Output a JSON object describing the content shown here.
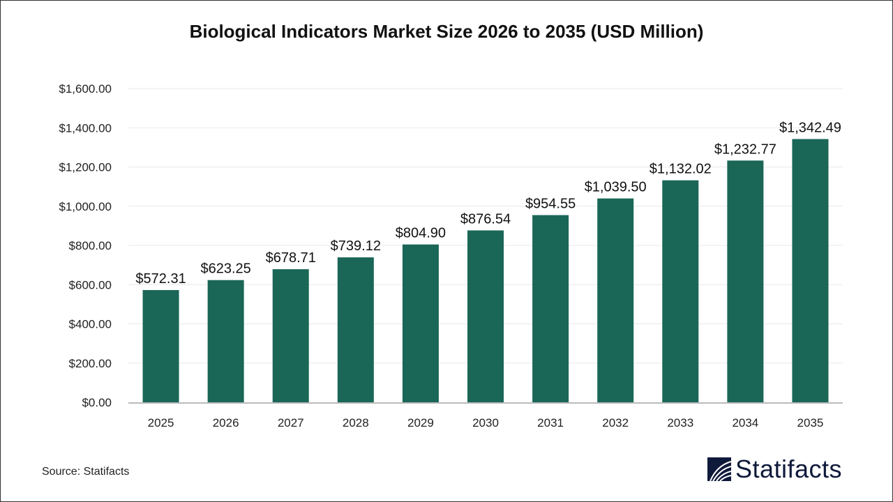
{
  "chart_data": {
    "type": "bar",
    "title": "Biological Indicators Market Size 2026 to 2035 (USD Million)",
    "categories": [
      "2025",
      "2026",
      "2027",
      "2028",
      "2029",
      "2030",
      "2031",
      "2032",
      "2033",
      "2034",
      "2035"
    ],
    "values": [
      572.31,
      623.25,
      678.71,
      739.12,
      804.9,
      876.54,
      954.55,
      1039.5,
      1132.02,
      1232.77,
      1342.49
    ],
    "data_labels": [
      "$572.31",
      "$623.25",
      "$678.71",
      "$739.12",
      "$804.90",
      "$876.54",
      "$954.55",
      "$1,039.50",
      "$1,132.02",
      "$1,232.77",
      "$1,342.49"
    ],
    "ylim": [
      0,
      1600
    ],
    "yticks": [
      0,
      200,
      400,
      600,
      800,
      1000,
      1200,
      1400,
      1600
    ],
    "ytick_labels": [
      "$0.00",
      "$200.00",
      "$400.00",
      "$600.00",
      "$800.00",
      "$1,000.00",
      "$1,200.00",
      "$1,400.00",
      "$1,600.00"
    ],
    "xlabel": "",
    "ylabel": "",
    "grid": true,
    "bar_color": "#1a6657"
  },
  "footer": {
    "source": "Source: Statifacts",
    "logo_text": "Statifacts",
    "logo_color": "#0f1a3a"
  }
}
